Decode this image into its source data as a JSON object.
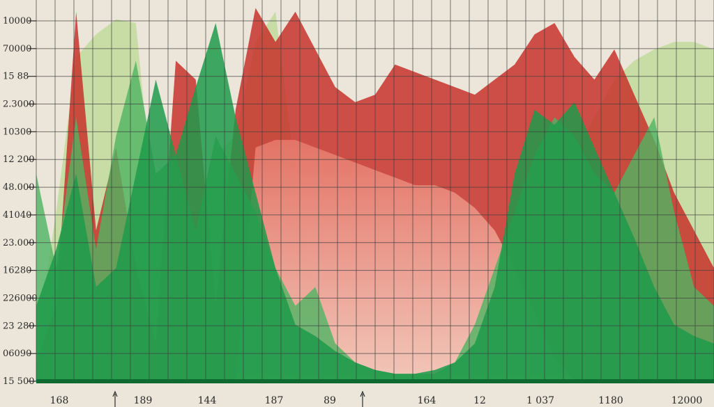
{
  "chart_data": {
    "type": "area",
    "title": "",
    "xlabel": "",
    "ylabel": "",
    "grid": true,
    "legend": "none",
    "y_tick_labels": [
      "10000",
      "70000",
      "15 88",
      "2.3000",
      "10300",
      "12 200",
      "48.000",
      "41040",
      "23.000",
      "16280",
      "226000",
      "23 280",
      "06090",
      "15 500"
    ],
    "x_tick_labels": [
      "168",
      "189",
      "144",
      "187",
      "89",
      "164",
      "12",
      "1 037",
      "1180",
      "12000"
    ],
    "colors": {
      "background": "#ebe6d9",
      "grid": "#3f3f3f",
      "green_dark": "#1f9a4a",
      "green_mid": "#4fb463",
      "green_light": "#c4dca0",
      "red": "#c8322c",
      "pink": "#eea08f",
      "baseline": "#0f6a32"
    },
    "series": [
      {
        "color_key": "green_light",
        "values": [
          0.1,
          0.45,
          0.86,
          0.92,
          0.96,
          0.95,
          0.4,
          0.38,
          0.42,
          0.6,
          0.65,
          0.9,
          0.98,
          0.55,
          0.2,
          0.12,
          0.1,
          0.08,
          0.06,
          0.04,
          0.03,
          0.03,
          0.05,
          0.1,
          0.2,
          0.3,
          0.45,
          0.6,
          0.7,
          0.8,
          0.85,
          0.88,
          0.9,
          0.9,
          0.88
        ]
      },
      {
        "color_key": "red",
        "values": [
          0.05,
          0.2,
          0.98,
          0.4,
          0.62,
          0.3,
          0.1,
          0.85,
          0.8,
          0.2,
          0.72,
          0.99,
          0.9,
          0.98,
          0.88,
          0.78,
          0.74,
          0.76,
          0.84,
          0.82,
          0.8,
          0.78,
          0.76,
          0.8,
          0.84,
          0.92,
          0.95,
          0.86,
          0.8,
          0.88,
          0.76,
          0.64,
          0.5,
          0.4,
          0.3
        ]
      },
      {
        "color_key": "pink",
        "values": [
          0.0,
          0.0,
          0.0,
          0.0,
          0.0,
          0.0,
          0.0,
          0.0,
          0.0,
          0.0,
          0.0,
          0.62,
          0.64,
          0.64,
          0.62,
          0.6,
          0.58,
          0.56,
          0.54,
          0.52,
          0.52,
          0.5,
          0.46,
          0.4,
          0.3,
          0.18,
          0.06,
          0.0,
          0.0,
          0.0,
          0.0,
          0.0,
          0.0,
          0.0,
          0.0
        ]
      },
      {
        "color_key": "green_mid",
        "values": [
          0.55,
          0.3,
          0.7,
          0.35,
          0.65,
          0.85,
          0.55,
          0.6,
          0.4,
          0.65,
          0.55,
          0.45,
          0.3,
          0.2,
          0.25,
          0.1,
          0.05,
          0.03,
          0.02,
          0.02,
          0.02,
          0.05,
          0.15,
          0.3,
          0.45,
          0.6,
          0.7,
          0.65,
          0.55,
          0.5,
          0.6,
          0.7,
          0.45,
          0.25,
          0.2
        ]
      },
      {
        "color_key": "green_dark",
        "values": [
          0.2,
          0.35,
          0.55,
          0.25,
          0.3,
          0.55,
          0.8,
          0.6,
          0.78,
          0.95,
          0.7,
          0.5,
          0.3,
          0.15,
          0.12,
          0.08,
          0.05,
          0.03,
          0.02,
          0.02,
          0.03,
          0.05,
          0.1,
          0.25,
          0.55,
          0.72,
          0.68,
          0.74,
          0.62,
          0.5,
          0.38,
          0.25,
          0.15,
          0.12,
          0.1
        ]
      }
    ]
  }
}
